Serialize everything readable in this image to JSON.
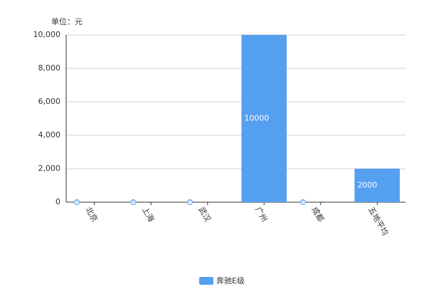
{
  "chart_data": {
    "type": "bar",
    "unit_label": "单位：元",
    "categories": [
      "北京",
      "上海",
      "武汉",
      "广州",
      "成都",
      "五地平均"
    ],
    "series": [
      {
        "name": "奔驰E级",
        "color": "#559ff0",
        "values": [
          0,
          0,
          0,
          10000,
          0,
          2000
        ]
      }
    ],
    "ylim": [
      0,
      10000
    ],
    "yticks": [
      0,
      {
        "value": 2000,
        "label": "2,000"
      },
      {
        "value": 4000,
        "label": "4,000"
      },
      {
        "value": 6000,
        "label": "6,000"
      },
      {
        "value": 8000,
        "label": "8,000"
      },
      {
        "value": 10000,
        "label": "10,000"
      }
    ],
    "grid": true,
    "legend": "bottom"
  }
}
